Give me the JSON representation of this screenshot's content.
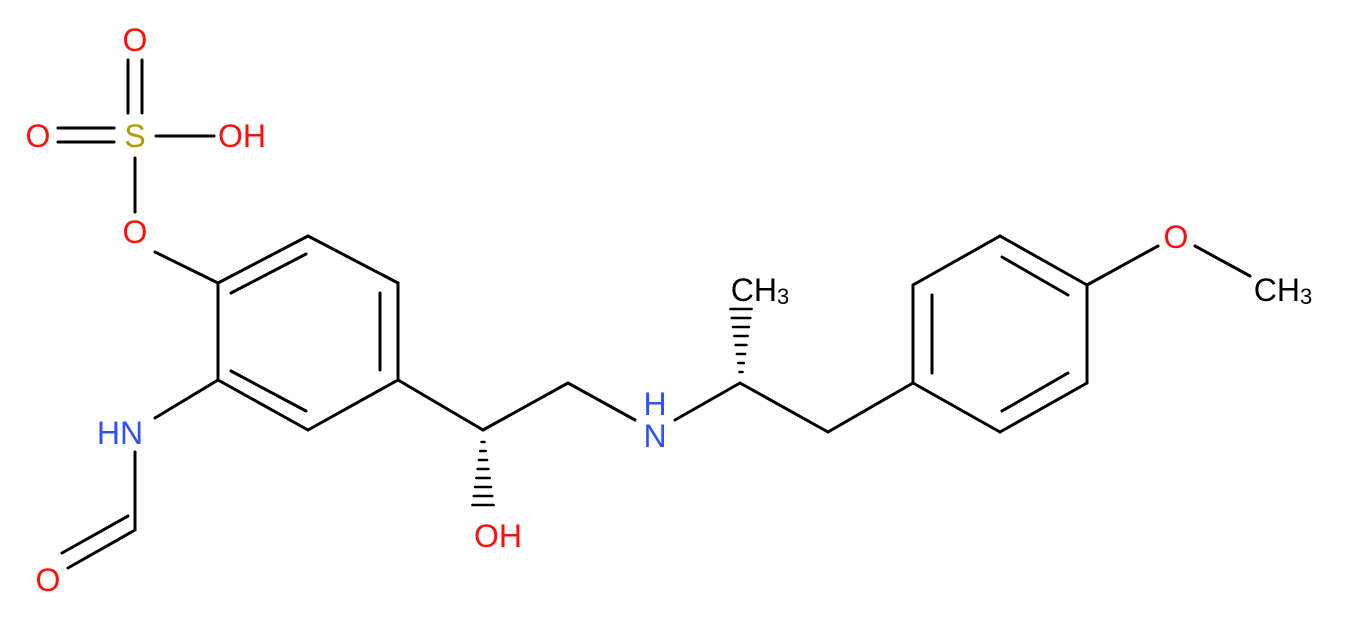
{
  "atoms": {
    "sulfonyl_o_top": "O",
    "sulfonyl_o_left": "O",
    "sulfur": "S",
    "hydroxyl_s": "OH",
    "ester_o": "O",
    "amide_nh": "HN",
    "formyl_o": "O",
    "hydroxyl_c": "OH",
    "amine_h": "H",
    "amine_n": "N",
    "methyl_c": "CH",
    "methyl_sub": "3",
    "methoxy_o": "O",
    "methoxy_c": "CH",
    "methoxy_sub": "3"
  }
}
